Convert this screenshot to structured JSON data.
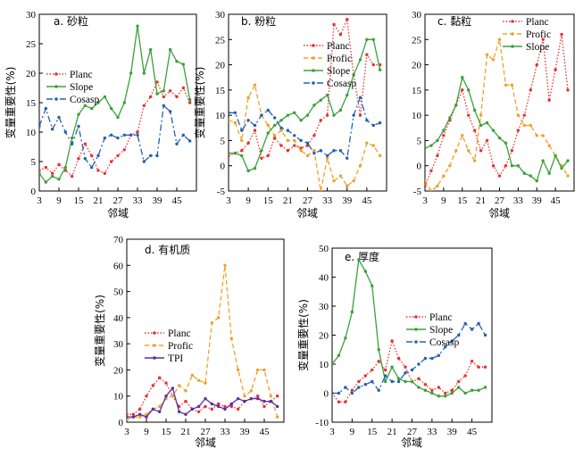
{
  "colors": {
    "Planc": "#e8312f",
    "Slope": "#3aa13a",
    "Cosasp": "#2460b0",
    "Profic": "#f0a028",
    "TPI": "#5a2ea0"
  },
  "chart_data": [
    {
      "type": "line",
      "title": "a. 砂粒",
      "xlabel": "邻域",
      "ylabel": "变量重要性(%)",
      "xlim": [
        3,
        51
      ],
      "ylim": [
        0,
        30
      ],
      "xticks": [
        3,
        9,
        15,
        21,
        27,
        33,
        39,
        45
      ],
      "yticks": [
        0,
        5,
        10,
        15,
        20,
        25,
        30
      ],
      "x": [
        3,
        5,
        7,
        9,
        11,
        13,
        15,
        17,
        19,
        21,
        23,
        25,
        27,
        29,
        31,
        33,
        35,
        37,
        39,
        41,
        43,
        45,
        47,
        49
      ],
      "legend": {
        "position": "top-left",
        "entries": [
          "Planc",
          "Slope",
          "Cosasp"
        ]
      },
      "series": [
        {
          "name": "Planc",
          "style": "dotted",
          "values": [
            3.5,
            4,
            3,
            4.5,
            3.5,
            2.5,
            5.5,
            8,
            6,
            3.5,
            3,
            5,
            6,
            7,
            9.5,
            10,
            14.5,
            16,
            18.5,
            16,
            17,
            16,
            17.5,
            15
          ]
        },
        {
          "name": "Slope",
          "style": "solid",
          "values": [
            3,
            1.5,
            2.5,
            2,
            4,
            9,
            13,
            14.5,
            14,
            15,
            16,
            14,
            12.5,
            15,
            20,
            28,
            20,
            24,
            16.5,
            17,
            24,
            22,
            21.5,
            15.5
          ]
        },
        {
          "name": "Cosasp",
          "style": "dashdot",
          "values": [
            11,
            14,
            10.5,
            12.5,
            10,
            8,
            11,
            5.5,
            4,
            6,
            9,
            9.5,
            9,
            9.5,
            9.5,
            9.5,
            5,
            6,
            6,
            14.5,
            13.5,
            8,
            9.5,
            8.5
          ]
        }
      ]
    },
    {
      "type": "line",
      "title": "b. 粉粒",
      "xlabel": "",
      "ylabel": "变量重要性(%)",
      "xlim": [
        3,
        51
      ],
      "ylim": [
        -5,
        30
      ],
      "xticks": [
        3,
        9,
        15,
        21,
        27,
        33,
        39,
        45
      ],
      "yticks": [
        -5,
        0,
        5,
        10,
        15,
        20,
        25,
        30
      ],
      "x": [
        3,
        5,
        7,
        9,
        11,
        13,
        15,
        17,
        19,
        21,
        23,
        25,
        27,
        29,
        31,
        33,
        35,
        37,
        39,
        41,
        43,
        45,
        47,
        49
      ],
      "legend": {
        "position": "top-right",
        "entries": [
          "Planc",
          "Profic",
          "Slope",
          "Cosasp"
        ]
      },
      "series": [
        {
          "name": "Planc",
          "style": "dotted",
          "values": [
            2,
            2.5,
            3,
            4.5,
            7,
            1.5,
            2,
            5.5,
            4,
            3,
            4,
            3.5,
            4,
            6,
            9,
            10,
            28,
            26,
            29,
            18,
            10,
            22,
            20,
            20
          ]
        },
        {
          "name": "Profic",
          "style": "dashed",
          "values": [
            9,
            8.5,
            5,
            13.5,
            16,
            10,
            8,
            6,
            7,
            5,
            5,
            3,
            2,
            3,
            -5,
            1.5,
            -3,
            -2,
            -4,
            -3,
            0,
            4.5,
            4,
            2
          ]
        },
        {
          "name": "Slope",
          "style": "solid",
          "values": [
            2.5,
            2.5,
            2,
            -1,
            -0.5,
            3,
            6.5,
            8,
            9,
            10,
            10.5,
            9,
            10,
            12,
            13,
            14,
            10,
            11,
            14,
            18,
            21,
            25,
            25,
            19
          ]
        },
        {
          "name": "Cosasp",
          "style": "dashdot",
          "values": [
            10.5,
            10.5,
            7,
            9,
            8,
            10,
            11,
            9.5,
            7.5,
            7,
            6,
            5,
            4.5,
            2.5,
            3,
            2,
            3,
            3,
            1.5,
            10,
            13.5,
            9,
            8,
            8.5
          ]
        }
      ]
    },
    {
      "type": "line",
      "title": "c. 黏粒",
      "xlabel": "",
      "ylabel": "",
      "xlim": [
        3,
        51
      ],
      "ylim": [
        -5,
        30
      ],
      "xticks": [
        3,
        9,
        15,
        21,
        27,
        33,
        39,
        45
      ],
      "yticks": [
        -5,
        0,
        5,
        10,
        15,
        20,
        25,
        30
      ],
      "x": [
        3,
        5,
        7,
        9,
        11,
        13,
        15,
        17,
        19,
        21,
        23,
        25,
        27,
        29,
        31,
        33,
        35,
        37,
        39,
        41,
        43,
        45,
        47,
        49
      ],
      "legend": {
        "position": "top-right",
        "entries": [
          "Planc",
          "Profic",
          "Slope"
        ]
      },
      "series": [
        {
          "name": "Planc",
          "style": "dotted",
          "values": [
            -4,
            -1,
            2,
            6,
            9,
            12,
            15,
            10,
            7,
            3,
            5,
            0,
            -2,
            0,
            3,
            7,
            10,
            15,
            20,
            25,
            13,
            19,
            26,
            15
          ]
        },
        {
          "name": "Profic",
          "style": "dashed",
          "values": [
            -3,
            -5,
            -4,
            -2,
            0,
            3,
            6,
            3,
            1,
            10,
            22,
            21,
            25,
            16,
            16,
            10,
            8,
            8,
            6,
            6,
            4,
            2,
            0,
            -2
          ]
        },
        {
          "name": "Slope",
          "style": "solid",
          "values": [
            3.5,
            4,
            5,
            7,
            9.5,
            12,
            17.5,
            15,
            11,
            8,
            8.5,
            7,
            5.5,
            4.5,
            0,
            0,
            -1.5,
            -2,
            -3,
            1,
            -1.5,
            2,
            -0.5,
            1
          ]
        }
      ]
    },
    {
      "type": "line",
      "title": "d. 有机质",
      "xlabel": "邻域",
      "ylabel": "变量重要性(%)",
      "xlim": [
        3,
        51
      ],
      "ylim": [
        0,
        70
      ],
      "xticks": [
        3,
        9,
        15,
        21,
        27,
        33,
        39,
        45
      ],
      "yticks": [
        0,
        10,
        20,
        30,
        40,
        50,
        60,
        70
      ],
      "x": [
        3,
        5,
        7,
        9,
        11,
        13,
        15,
        17,
        19,
        21,
        23,
        25,
        27,
        29,
        31,
        33,
        35,
        37,
        39,
        41,
        43,
        45,
        47,
        49
      ],
      "legend": {
        "position": "center-left",
        "entries": [
          "Planc",
          "Profic",
          "TPI"
        ]
      },
      "series": [
        {
          "name": "Planc",
          "style": "dotted",
          "values": [
            3,
            3,
            5,
            10,
            14,
            17,
            15,
            10,
            6,
            8,
            5,
            4,
            6,
            5,
            7,
            6,
            6,
            5,
            8,
            9,
            10,
            6,
            8,
            10
          ]
        },
        {
          "name": "Profic",
          "style": "dashed",
          "values": [
            1,
            2,
            2,
            3,
            5,
            6,
            9,
            10,
            14,
            12,
            18,
            16,
            15,
            38,
            40,
            60,
            32,
            20,
            10,
            12,
            20,
            20,
            10,
            2
          ]
        },
        {
          "name": "TPI",
          "style": "solid",
          "values": [
            2,
            2,
            3,
            2,
            5,
            4,
            10,
            13,
            4,
            3,
            5,
            6,
            9,
            7,
            6,
            5,
            7,
            9,
            8,
            9,
            9,
            8,
            8,
            6
          ]
        }
      ]
    },
    {
      "type": "line",
      "title": "e. 厚度",
      "xlabel": "邻域",
      "ylabel": "变量重要性(%)",
      "xlim": [
        3,
        51
      ],
      "ylim": [
        -10,
        50
      ],
      "xticks": [
        3,
        9,
        15,
        21,
        27,
        33,
        39,
        45
      ],
      "yticks": [
        -10,
        0,
        10,
        20,
        30,
        40,
        50
      ],
      "x": [
        3,
        5,
        7,
        9,
        11,
        13,
        15,
        17,
        19,
        21,
        23,
        25,
        27,
        29,
        31,
        33,
        35,
        37,
        39,
        41,
        43,
        45,
        47,
        49
      ],
      "legend": {
        "position": "top-right",
        "entries": [
          "Planc",
          "Slope",
          "Cosasp"
        ]
      },
      "series": [
        {
          "name": "Planc",
          "style": "dotted",
          "values": [
            0,
            -3,
            -3,
            1,
            4,
            6,
            8,
            11,
            8,
            18,
            12,
            9,
            4,
            5,
            3,
            1,
            2,
            0,
            1,
            4,
            6,
            11,
            9,
            9
          ]
        },
        {
          "name": "Slope",
          "style": "solid",
          "values": [
            10,
            13,
            19,
            28,
            46,
            42,
            37,
            15,
            4,
            9,
            5,
            4,
            4,
            2,
            1,
            0,
            -1,
            -1,
            0,
            2,
            0,
            1,
            1,
            2
          ]
        },
        {
          "name": "Cosasp",
          "style": "dashdot",
          "values": [
            0,
            0,
            2,
            0,
            2,
            3,
            4,
            1,
            6,
            4,
            4,
            7,
            8,
            10,
            12,
            12,
            13,
            16,
            18,
            20,
            24,
            22,
            24,
            20
          ]
        }
      ]
    }
  ]
}
